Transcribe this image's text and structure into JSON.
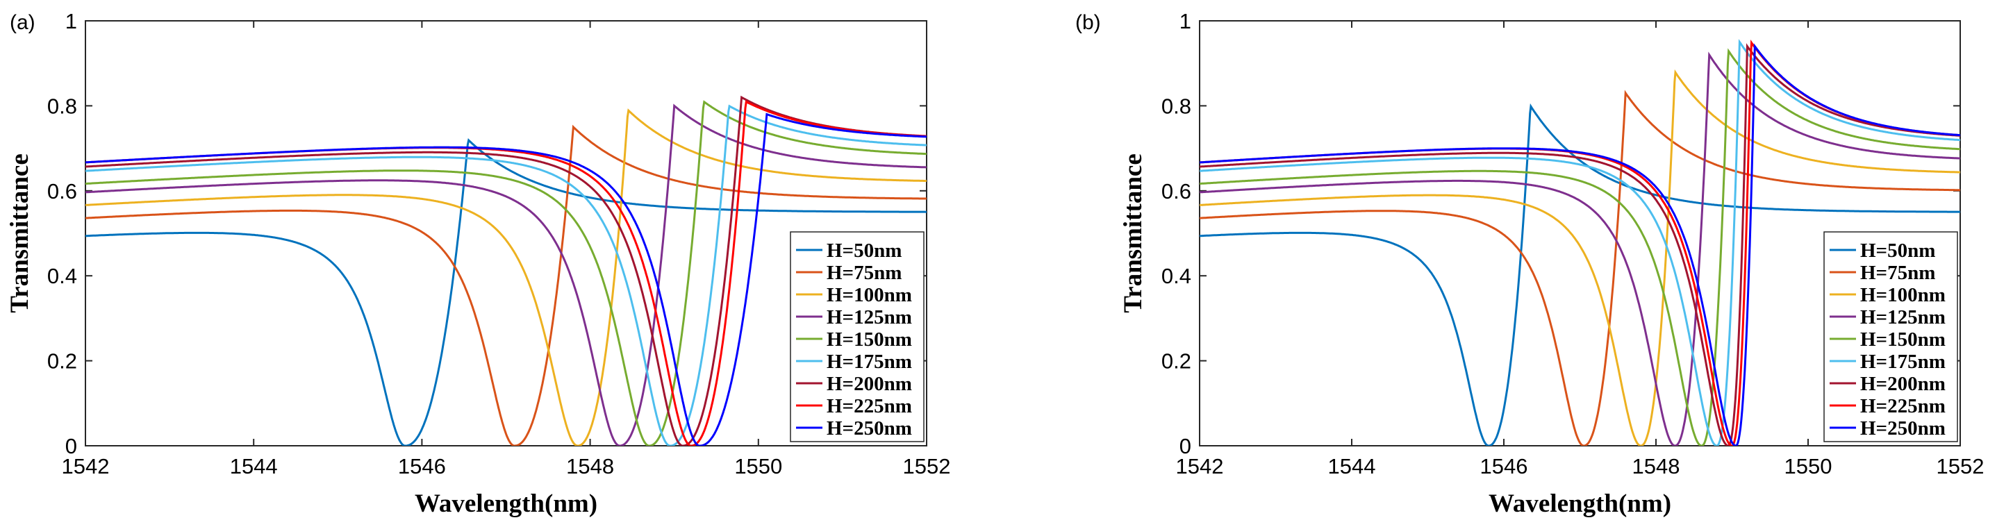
{
  "chart_data": [
    {
      "panel": "(a)",
      "type": "line",
      "xlabel": "Wavelength(nm)",
      "ylabel": "Transmittance",
      "xlim": [
        1542,
        1552
      ],
      "ylim": [
        0,
        1
      ],
      "xticks": [
        "1542",
        "1544",
        "1546",
        "1548",
        "1550",
        "1552"
      ],
      "yticks": [
        "0",
        "0.2",
        "0.4",
        "0.6",
        "0.8",
        "1"
      ],
      "legend_position": "lower-right",
      "series": [
        {
          "name": "H=50nm",
          "color": "#0072BD",
          "dip": 1545.8,
          "peak": 1546.55,
          "peak_value": 0.72,
          "left_value": 0.5,
          "right_value": 0.55
        },
        {
          "name": "H=75nm",
          "color": "#D95319",
          "dip": 1547.1,
          "peak": 1547.8,
          "peak_value": 0.75,
          "left_value": 0.54,
          "right_value": 0.58
        },
        {
          "name": "H=100nm",
          "color": "#EDB120",
          "dip": 1547.85,
          "peak": 1548.45,
          "peak_value": 0.79,
          "left_value": 0.57,
          "right_value": 0.62
        },
        {
          "name": "H=125nm",
          "color": "#7E2F8E",
          "dip": 1548.35,
          "peak": 1549.0,
          "peak_value": 0.8,
          "left_value": 0.6,
          "right_value": 0.65
        },
        {
          "name": "H=150nm",
          "color": "#77AC30",
          "dip": 1548.7,
          "peak": 1549.35,
          "peak_value": 0.81,
          "left_value": 0.62,
          "right_value": 0.68
        },
        {
          "name": "H=175nm",
          "color": "#4DBEEE",
          "dip": 1548.95,
          "peak": 1549.65,
          "peak_value": 0.8,
          "left_value": 0.65,
          "right_value": 0.7
        },
        {
          "name": "H=200nm",
          "color": "#A2142F",
          "dip": 1549.1,
          "peak": 1549.8,
          "peak_value": 0.82,
          "left_value": 0.66,
          "right_value": 0.72
        },
        {
          "name": "H=225nm",
          "color": "#FF0000",
          "dip": 1549.2,
          "peak": 1549.85,
          "peak_value": 0.81,
          "left_value": 0.67,
          "right_value": 0.72
        },
        {
          "name": "H=250nm",
          "color": "#0000FF",
          "dip": 1549.3,
          "peak": 1550.1,
          "peak_value": 0.78,
          "left_value": 0.67,
          "right_value": 0.72
        }
      ]
    },
    {
      "panel": "(b)",
      "type": "line",
      "xlabel": "Wavelength(nm)",
      "ylabel": "Transmittance",
      "xlim": [
        1542,
        1552
      ],
      "ylim": [
        0,
        1
      ],
      "xticks": [
        "1542",
        "1544",
        "1546",
        "1548",
        "1550",
        "1552"
      ],
      "yticks": [
        "0",
        "0.2",
        "0.4",
        "0.6",
        "0.8",
        "1"
      ],
      "legend_position": "lower-right",
      "series": [
        {
          "name": "H=50nm",
          "color": "#0072BD",
          "dip": 1545.8,
          "peak": 1546.35,
          "peak_value": 0.8,
          "left_value": 0.5,
          "right_value": 0.55
        },
        {
          "name": "H=75nm",
          "color": "#D95319",
          "dip": 1547.05,
          "peak": 1547.6,
          "peak_value": 0.83,
          "left_value": 0.54,
          "right_value": 0.6
        },
        {
          "name": "H=100nm",
          "color": "#EDB120",
          "dip": 1547.8,
          "peak": 1548.25,
          "peak_value": 0.88,
          "left_value": 0.57,
          "right_value": 0.64
        },
        {
          "name": "H=125nm",
          "color": "#7E2F8E",
          "dip": 1548.25,
          "peak": 1548.7,
          "peak_value": 0.92,
          "left_value": 0.6,
          "right_value": 0.67
        },
        {
          "name": "H=150nm",
          "color": "#77AC30",
          "dip": 1548.6,
          "peak": 1548.95,
          "peak_value": 0.93,
          "left_value": 0.62,
          "right_value": 0.69
        },
        {
          "name": "H=175nm",
          "color": "#4DBEEE",
          "dip": 1548.8,
          "peak": 1549.1,
          "peak_value": 0.95,
          "left_value": 0.65,
          "right_value": 0.71
        },
        {
          "name": "H=200nm",
          "color": "#A2142F",
          "dip": 1548.95,
          "peak": 1549.2,
          "peak_value": 0.94,
          "left_value": 0.66,
          "right_value": 0.72
        },
        {
          "name": "H=225nm",
          "color": "#FF0000",
          "dip": 1549.0,
          "peak": 1549.25,
          "peak_value": 0.95,
          "left_value": 0.67,
          "right_value": 0.72
        },
        {
          "name": "H=250nm",
          "color": "#0000FF",
          "dip": 1549.05,
          "peak": 1549.3,
          "peak_value": 0.94,
          "left_value": 0.67,
          "right_value": 0.72
        }
      ]
    }
  ]
}
